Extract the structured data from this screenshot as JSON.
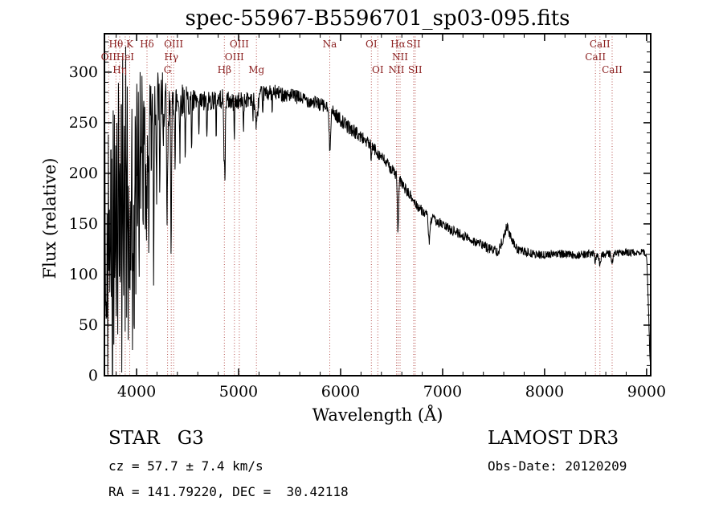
{
  "title": "spec-55967-B5596701_sp03-095.fits",
  "annotations": {
    "class_label": "STAR   G3",
    "survey": "LAMOST DR3",
    "cz_text": "cz = 57.7 ± 7.4 km/s",
    "obs_date": "Obs-Date: 20120209",
    "radec_text": "RA = 141.79220, DEC =  30.42118"
  },
  "chart_data": {
    "type": "line",
    "title": "spec-55967-B5596701_sp03-095.fits",
    "xlabel": "Wavelength (Å)",
    "ylabel": "Flux (relative)",
    "xlim": [
      3685,
      9040
    ],
    "ylim": [
      0,
      338
    ],
    "x_ticks": [
      4000,
      5000,
      6000,
      7000,
      8000,
      9000
    ],
    "y_ticks": [
      0,
      50,
      100,
      150,
      200,
      250,
      300
    ],
    "x_minor_step": 200,
    "y_minor_step": 10,
    "grid": false,
    "spectrum_color": "#000000",
    "frame_color": "#000000",
    "marker_line_color": "#b0413c",
    "marker_label_color": "#8b2020",
    "seed": 42,
    "spectral_lines": [
      {
        "wavelength": 3727,
        "label": "OII",
        "row": 2
      },
      {
        "wavelength": 3798,
        "label": "Hθ",
        "row": 1
      },
      {
        "wavelength": 3835,
        "label": "Hη",
        "row": 3
      },
      {
        "wavelength": 3889,
        "label": "HeI",
        "row": 2
      },
      {
        "wavelength": 3933,
        "label": "K",
        "row": 1
      },
      {
        "wavelength": 4102,
        "label": "Hδ",
        "row": 1
      },
      {
        "wavelength": 4304,
        "label": "G",
        "row": 3
      },
      {
        "wavelength": 4340,
        "label": "Hγ",
        "row": 2
      },
      {
        "wavelength": 4363,
        "label": "OIII",
        "row": 1
      },
      {
        "wavelength": 4861,
        "label": "Hβ",
        "row": 3
      },
      {
        "wavelength": 4959,
        "label": "OIII",
        "row": 2
      },
      {
        "wavelength": 5007,
        "label": "OIII",
        "row": 1
      },
      {
        "wavelength": 5175,
        "label": "Mg",
        "row": 3
      },
      {
        "wavelength": 5894,
        "label": "Na",
        "row": 1
      },
      {
        "wavelength": 6302,
        "label": "OI",
        "row": 1
      },
      {
        "wavelength": 6365,
        "label": "OI",
        "row": 3
      },
      {
        "wavelength": 6548,
        "label": "NII",
        "row": 3
      },
      {
        "wavelength": 6563,
        "label": "Hα",
        "row": 1
      },
      {
        "wavelength": 6583,
        "label": "NII",
        "row": 2
      },
      {
        "wavelength": 6716,
        "label": "SII",
        "row": 1
      },
      {
        "wavelength": 6731,
        "label": "SII",
        "row": 3
      },
      {
        "wavelength": 8498,
        "label": "CaII",
        "row": 2
      },
      {
        "wavelength": 8542,
        "label": "CaII",
        "row": 1
      },
      {
        "wavelength": 8662,
        "label": "CaII",
        "row": 3
      }
    ],
    "continuum": [
      [
        3690,
        240
      ],
      [
        3750,
        265
      ],
      [
        3850,
        272
      ],
      [
        3950,
        272
      ],
      [
        4050,
        275
      ],
      [
        4150,
        272
      ],
      [
        4250,
        275
      ],
      [
        4350,
        272
      ],
      [
        4450,
        273
      ],
      [
        4550,
        270
      ],
      [
        4650,
        270
      ],
      [
        4750,
        273
      ],
      [
        4850,
        274
      ],
      [
        4950,
        270
      ],
      [
        5050,
        272
      ],
      [
        5150,
        276
      ],
      [
        5250,
        279
      ],
      [
        5350,
        280
      ],
      [
        5450,
        278
      ],
      [
        5550,
        276
      ],
      [
        5650,
        273
      ],
      [
        5750,
        270
      ],
      [
        5850,
        266
      ],
      [
        5950,
        258
      ],
      [
        6050,
        248
      ],
      [
        6150,
        240
      ],
      [
        6250,
        232
      ],
      [
        6350,
        222
      ],
      [
        6450,
        210
      ],
      [
        6550,
        198
      ],
      [
        6650,
        182
      ],
      [
        6750,
        168
      ],
      [
        6850,
        158
      ],
      [
        6950,
        152
      ],
      [
        7050,
        146
      ],
      [
        7150,
        141
      ],
      [
        7250,
        136
      ],
      [
        7350,
        131
      ],
      [
        7450,
        126
      ],
      [
        7550,
        123
      ],
      [
        7600,
        138
      ],
      [
        7630,
        148
      ],
      [
        7670,
        136
      ],
      [
        7720,
        126
      ],
      [
        7800,
        122
      ],
      [
        7900,
        120
      ],
      [
        8000,
        119
      ],
      [
        8100,
        121
      ],
      [
        8200,
        120
      ],
      [
        8300,
        119
      ],
      [
        8400,
        120
      ],
      [
        8500,
        121
      ],
      [
        8600,
        120
      ],
      [
        8700,
        121
      ],
      [
        8800,
        122
      ],
      [
        8900,
        121
      ],
      [
        8960,
        123
      ],
      [
        9000,
        118
      ],
      [
        9015,
        80
      ],
      [
        9030,
        25
      ],
      [
        9040,
        4
      ]
    ],
    "noise_profile": [
      [
        3690,
        85
      ],
      [
        3800,
        78
      ],
      [
        3900,
        70
      ],
      [
        4000,
        55
      ],
      [
        4100,
        45
      ],
      [
        4200,
        32
      ],
      [
        4300,
        24
      ],
      [
        4400,
        18
      ],
      [
        4600,
        12
      ],
      [
        4800,
        10
      ],
      [
        5200,
        8
      ],
      [
        5600,
        7
      ],
      [
        6000,
        7
      ],
      [
        6400,
        6
      ],
      [
        6800,
        5
      ],
      [
        7200,
        5
      ],
      [
        7600,
        5
      ],
      [
        8000,
        4
      ],
      [
        8600,
        4
      ],
      [
        9040,
        3
      ]
    ],
    "absorption_features": [
      [
        3933,
        180,
        7
      ],
      [
        3968,
        120,
        6
      ],
      [
        4101,
        130,
        6
      ],
      [
        4304,
        55,
        9
      ],
      [
        4340,
        75,
        6
      ],
      [
        4861,
        65,
        6
      ],
      [
        5175,
        28,
        12
      ],
      [
        5894,
        38,
        7
      ],
      [
        6563,
        55,
        6
      ],
      [
        6870,
        25,
        8
      ],
      [
        8498,
        8,
        7
      ],
      [
        8542,
        10,
        8
      ],
      [
        8662,
        9,
        8
      ]
    ],
    "noise_spikes": [
      [
        3697,
        240
      ],
      [
        3706,
        180
      ],
      [
        3716,
        260
      ],
      [
        3727,
        150
      ],
      [
        3739,
        220
      ],
      [
        3752,
        120
      ],
      [
        3763,
        250
      ],
      [
        3776,
        170
      ],
      [
        3788,
        210
      ],
      [
        3801,
        140
      ],
      [
        3814,
        230
      ],
      [
        3829,
        160
      ],
      [
        3843,
        190
      ],
      [
        3857,
        260
      ],
      [
        3872,
        130
      ],
      [
        3886,
        210
      ],
      [
        3903,
        170
      ],
      [
        3917,
        240
      ],
      [
        3947,
        150
      ],
      [
        3959,
        200
      ],
      [
        3978,
        230
      ],
      [
        3994,
        160
      ],
      [
        4010,
        120
      ],
      [
        4026,
        190
      ],
      [
        4043,
        90
      ],
      [
        4062,
        160
      ],
      [
        4085,
        110
      ],
      [
        4120,
        140
      ],
      [
        4145,
        70
      ],
      [
        4168,
        180
      ],
      [
        4196,
        90
      ],
      [
        4228,
        120
      ],
      [
        4262,
        70
      ],
      [
        4298,
        100
      ],
      [
        4338,
        60
      ],
      [
        4378,
        70
      ],
      [
        4425,
        55
      ],
      [
        4478,
        60
      ],
      [
        4540,
        45
      ],
      [
        4610,
        40
      ],
      [
        4690,
        45
      ],
      [
        4780,
        35
      ],
      [
        4868,
        40
      ],
      [
        4958,
        30
      ],
      [
        5048,
        28
      ],
      [
        5140,
        25
      ],
      [
        5235,
        22
      ],
      [
        5330,
        20
      ],
      [
        6300,
        20
      ]
    ]
  }
}
